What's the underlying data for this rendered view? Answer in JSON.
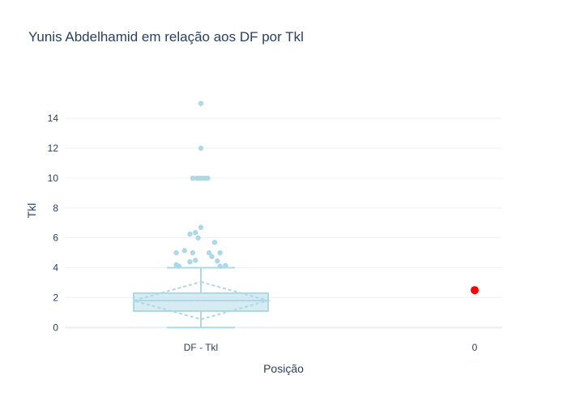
{
  "chart_data": {
    "type": "box",
    "title": "Yunis Abdelhamid em relação aos DF por Tkl",
    "xlabel": "Posição",
    "ylabel": "Tkl",
    "ylim": [
      -1.5,
      16.5
    ],
    "y_ticks": [
      0,
      2,
      4,
      6,
      8,
      10,
      12,
      14
    ],
    "categories": [
      "DF - Tkl",
      "0"
    ],
    "grid": true,
    "box": {
      "category": "DF - Tkl",
      "q1": 1.1,
      "median": 1.8,
      "q3": 2.3,
      "mean": 1.8,
      "sd_upper": 3.05,
      "sd_lower": 0.55,
      "whisker_low": 0,
      "whisker_high": 4.0,
      "color": "#add8e6",
      "outliers": [
        {
          "x": 0.0,
          "y": 15.0
        },
        {
          "x": 0.0,
          "y": 12.0
        },
        {
          "x": -0.03,
          "y": 10.0
        },
        {
          "x": -0.015,
          "y": 10.0
        },
        {
          "x": -0.005,
          "y": 10.0
        },
        {
          "x": 0.005,
          "y": 10.0
        },
        {
          "x": 0.015,
          "y": 10.0
        },
        {
          "x": 0.025,
          "y": 10.0
        },
        {
          "x": 0.0,
          "y": 6.7
        },
        {
          "x": -0.02,
          "y": 6.35
        },
        {
          "x": -0.04,
          "y": 6.25
        },
        {
          "x": -0.01,
          "y": 6.0
        },
        {
          "x": 0.05,
          "y": 5.7
        },
        {
          "x": -0.06,
          "y": 5.15
        },
        {
          "x": -0.09,
          "y": 5.0
        },
        {
          "x": -0.03,
          "y": 5.0
        },
        {
          "x": 0.03,
          "y": 5.0
        },
        {
          "x": 0.07,
          "y": 5.0
        },
        {
          "x": 0.04,
          "y": 4.75
        },
        {
          "x": 0.06,
          "y": 4.45
        },
        {
          "x": -0.02,
          "y": 4.5
        },
        {
          "x": -0.04,
          "y": 4.4
        },
        {
          "x": -0.09,
          "y": 4.2
        },
        {
          "x": -0.08,
          "y": 4.1
        },
        {
          "x": 0.07,
          "y": 4.1
        },
        {
          "x": 0.09,
          "y": 4.15
        }
      ]
    },
    "highlight": {
      "category": "0",
      "value": 2.5,
      "color": "#ff0000"
    }
  }
}
